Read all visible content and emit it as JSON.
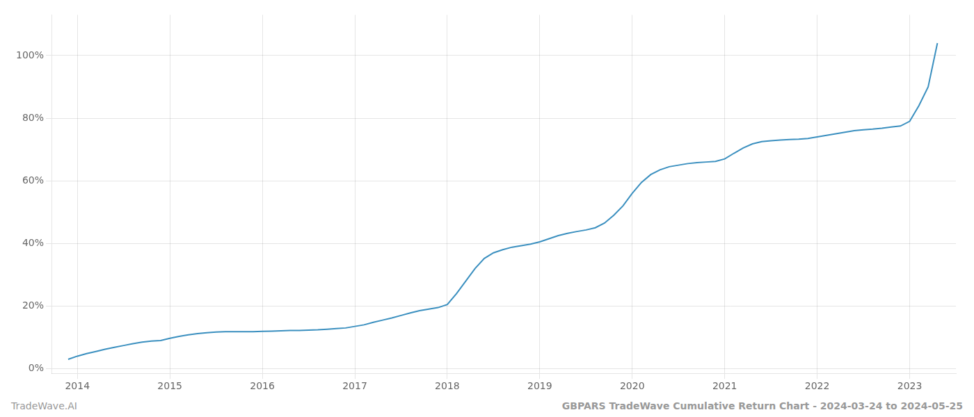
{
  "chart_data": {
    "type": "line",
    "x": [
      2013.9,
      2014.0,
      2014.1,
      2014.2,
      2014.3,
      2014.4,
      2014.5,
      2014.6,
      2014.7,
      2014.8,
      2014.9,
      2015.0,
      2015.1,
      2015.2,
      2015.3,
      2015.4,
      2015.5,
      2015.6,
      2015.7,
      2015.8,
      2015.9,
      2016.0,
      2016.1,
      2016.2,
      2016.3,
      2016.4,
      2016.5,
      2016.6,
      2016.7,
      2016.8,
      2016.9,
      2017.0,
      2017.1,
      2017.2,
      2017.3,
      2017.4,
      2017.5,
      2017.6,
      2017.7,
      2017.8,
      2017.9,
      2018.0,
      2018.1,
      2018.2,
      2018.3,
      2018.4,
      2018.5,
      2018.6,
      2018.7,
      2018.8,
      2018.9,
      2019.0,
      2019.1,
      2019.2,
      2019.3,
      2019.4,
      2019.5,
      2019.6,
      2019.7,
      2019.8,
      2019.9,
      2020.0,
      2020.1,
      2020.2,
      2020.3,
      2020.4,
      2020.5,
      2020.6,
      2020.7,
      2020.8,
      2020.9,
      2021.0,
      2021.1,
      2021.2,
      2021.3,
      2021.4,
      2021.5,
      2021.6,
      2021.7,
      2021.8,
      2021.9,
      2022.0,
      2022.1,
      2022.2,
      2022.3,
      2022.4,
      2022.5,
      2022.6,
      2022.7,
      2022.8,
      2022.9,
      2023.0,
      2023.1,
      2023.2,
      2023.3
    ],
    "values": [
      0.03,
      0.04,
      0.048,
      0.055,
      0.062,
      0.068,
      0.074,
      0.08,
      0.085,
      0.088,
      0.09,
      0.097,
      0.103,
      0.108,
      0.112,
      0.115,
      0.117,
      0.118,
      0.118,
      0.118,
      0.118,
      0.119,
      0.12,
      0.121,
      0.122,
      0.122,
      0.123,
      0.124,
      0.126,
      0.128,
      0.13,
      0.135,
      0.14,
      0.148,
      0.155,
      0.162,
      0.17,
      0.178,
      0.185,
      0.19,
      0.195,
      0.205,
      0.24,
      0.28,
      0.32,
      0.352,
      0.37,
      0.38,
      0.388,
      0.393,
      0.398,
      0.405,
      0.415,
      0.425,
      0.432,
      0.438,
      0.443,
      0.45,
      0.465,
      0.49,
      0.52,
      0.56,
      0.595,
      0.62,
      0.635,
      0.645,
      0.65,
      0.655,
      0.658,
      0.66,
      0.662,
      0.67,
      0.688,
      0.705,
      0.718,
      0.725,
      0.728,
      0.73,
      0.732,
      0.733,
      0.735,
      0.74,
      0.745,
      0.75,
      0.755,
      0.76,
      0.763,
      0.765,
      0.768,
      0.772,
      0.775,
      0.79,
      0.84,
      0.9,
      1.04
    ],
    "color": "#3a8fbf",
    "xlim": [
      2013.72,
      2023.5
    ],
    "ylim": [
      -0.015,
      1.13
    ],
    "xticks": [
      2014,
      2015,
      2016,
      2017,
      2018,
      2019,
      2020,
      2021,
      2022,
      2023
    ],
    "yticks": [
      {
        "value": 0.0,
        "label": "0%"
      },
      {
        "value": 0.2,
        "label": "20%"
      },
      {
        "value": 0.4,
        "label": "40%"
      },
      {
        "value": 0.6,
        "label": "60%"
      },
      {
        "value": 0.8,
        "label": "80%"
      },
      {
        "value": 1.0,
        "label": "100%"
      }
    ],
    "grid": true,
    "annotations": [
      "TradeWave.AI",
      "GBPARS TradeWave Cumulative Return Chart - 2024-03-24 to 2024-05-25"
    ]
  }
}
